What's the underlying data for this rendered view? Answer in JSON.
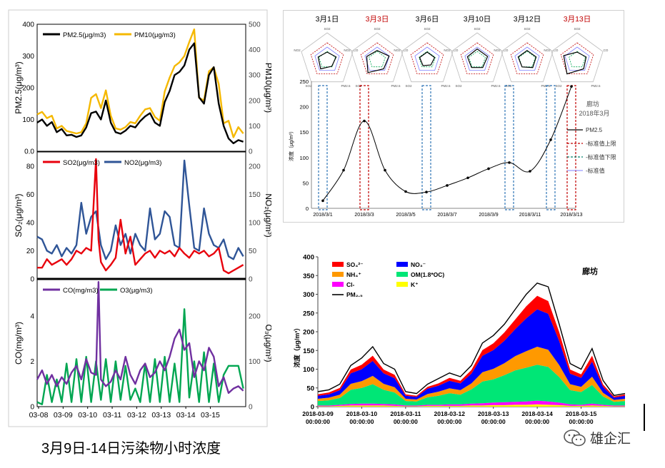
{
  "caption": "3月9日-14日污染物小时浓度",
  "watermark": "雄企汇",
  "chart_data": [
    {
      "id": "left-top",
      "type": "line",
      "legend": [
        "PM2.5(μg/m3)",
        "PM10(μg/m3)"
      ],
      "ylabel_left": "PM2.5(μg/m³)",
      "ylabel_right": "PM10(μg/m³)",
      "yticks_left": [
        "400",
        "300",
        "200",
        "100",
        "0.0"
      ],
      "yticks_right": [
        "500",
        "400",
        "300",
        "200",
        "100",
        "0"
      ],
      "ylim_left": [
        0,
        400
      ],
      "ylim_right": [
        0,
        500
      ],
      "xlim": [
        0,
        8.5
      ],
      "colors": {
        "PM2.5": "#000000",
        "PM10": "#f5b800"
      },
      "series": [
        {
          "name": "PM2.5(μg/m3)",
          "axis": "left",
          "x": [
            0,
            0.2,
            0.4,
            0.6,
            0.8,
            1.0,
            1.2,
            1.4,
            1.6,
            1.8,
            2.0,
            2.2,
            2.4,
            2.6,
            2.8,
            3.0,
            3.2,
            3.4,
            3.6,
            3.8,
            4.0,
            4.2,
            4.4,
            4.6,
            4.8,
            5.0,
            5.2,
            5.4,
            5.6,
            5.8,
            6.0,
            6.2,
            6.4,
            6.6,
            6.8,
            7.0,
            7.2,
            7.4,
            7.6,
            7.8,
            8.0,
            8.2,
            8.4
          ],
          "y": [
            90,
            100,
            80,
            92,
            60,
            70,
            50,
            52,
            45,
            50,
            75,
            120,
            125,
            100,
            160,
            90,
            60,
            55,
            65,
            80,
            75,
            95,
            110,
            120,
            90,
            80,
            155,
            190,
            240,
            250,
            270,
            320,
            340,
            170,
            150,
            240,
            265,
            150,
            80,
            40,
            25,
            35,
            30
          ]
        },
        {
          "name": "PM10(μg/m3)",
          "axis": "right",
          "x": [
            0,
            0.2,
            0.4,
            0.6,
            0.8,
            1.0,
            1.2,
            1.4,
            1.6,
            1.8,
            2.0,
            2.2,
            2.4,
            2.6,
            2.8,
            3.0,
            3.2,
            3.4,
            3.6,
            3.8,
            4.0,
            4.2,
            4.4,
            4.6,
            4.8,
            5.0,
            5.2,
            5.4,
            5.6,
            5.8,
            6.0,
            6.2,
            6.4,
            6.6,
            6.8,
            7.0,
            7.2,
            7.4,
            7.6,
            7.8,
            8.0,
            8.2,
            8.4
          ],
          "y": [
            145,
            155,
            130,
            140,
            90,
            100,
            80,
            75,
            70,
            75,
            110,
            210,
            225,
            170,
            240,
            140,
            90,
            85,
            95,
            115,
            110,
            140,
            165,
            170,
            135,
            120,
            235,
            290,
            335,
            350,
            375,
            430,
            480,
            210,
            200,
            315,
            330,
            265,
            110,
            120,
            55,
            95,
            70
          ]
        }
      ]
    },
    {
      "id": "left-mid",
      "type": "line",
      "legend": [
        "SO2(μg/m3)",
        "NO2(μg/m3)"
      ],
      "ylabel_left": "SO₂(μg/m³)",
      "ylabel_right": "NO₂(μg/m³)",
      "yticks_left": [
        "80",
        "60",
        "40",
        "20",
        "0"
      ],
      "yticks_right": [
        "200",
        "150",
        "100",
        "50",
        "0"
      ],
      "ylim_left": [
        0,
        90
      ],
      "ylim_right": [
        0,
        225
      ],
      "colors": {
        "SO2": "#e8000c",
        "NO2": "#2f5597"
      },
      "series": [
        {
          "name": "SO2(μg/m3)",
          "axis": "left",
          "x": [
            0,
            0.2,
            0.4,
            0.6,
            0.8,
            1.0,
            1.2,
            1.4,
            1.6,
            1.8,
            2.0,
            2.2,
            2.4,
            2.5,
            2.6,
            2.8,
            3.0,
            3.2,
            3.4,
            3.6,
            3.8,
            4.0,
            4.2,
            4.4,
            4.6,
            4.8,
            5.0,
            5.2,
            5.4,
            5.6,
            5.8,
            6.0,
            6.2,
            6.4,
            6.6,
            6.8,
            7.0,
            7.2,
            7.4,
            7.6,
            7.8,
            8.0,
            8.2,
            8.4
          ],
          "y": [
            8,
            8,
            14,
            10,
            12,
            14,
            10,
            14,
            20,
            18,
            22,
            20,
            85,
            28,
            12,
            6,
            10,
            15,
            42,
            18,
            30,
            10,
            14,
            18,
            20,
            15,
            20,
            18,
            20,
            16,
            22,
            18,
            15,
            20,
            18,
            20,
            16,
            18,
            22,
            6,
            4,
            6,
            8,
            10
          ]
        },
        {
          "name": "NO2(μg/m3)",
          "axis": "right",
          "x": [
            0,
            0.2,
            0.4,
            0.6,
            0.8,
            1.0,
            1.2,
            1.4,
            1.6,
            1.8,
            2.0,
            2.2,
            2.4,
            2.6,
            2.8,
            3.0,
            3.2,
            3.4,
            3.6,
            3.8,
            4.0,
            4.2,
            4.4,
            4.6,
            4.8,
            5.0,
            5.2,
            5.4,
            5.6,
            5.8,
            6.0,
            6.2,
            6.4,
            6.6,
            6.8,
            7.0,
            7.2,
            7.4,
            7.6,
            7.8,
            8.0,
            8.2,
            8.4
          ],
          "y": [
            75,
            70,
            50,
            45,
            60,
            40,
            55,
            45,
            60,
            135,
            80,
            110,
            120,
            60,
            35,
            50,
            95,
            60,
            80,
            45,
            80,
            60,
            50,
            125,
            70,
            80,
            120,
            110,
            60,
            55,
            210,
            130,
            55,
            50,
            125,
            80,
            60,
            55,
            70,
            40,
            35,
            55,
            40
          ]
        }
      ]
    },
    {
      "id": "left-bottom",
      "type": "line",
      "legend": [
        "CO(mg/m3)",
        "O3(μg/m3)"
      ],
      "ylabel_left": "CO(mg/m³)",
      "ylabel_right": "O₃(μg/m³)",
      "xlabels": [
        "03-08",
        "03-09",
        "03-10",
        "03-11",
        "03-12",
        "03-13",
        "03-14",
        "03-15"
      ],
      "yticks_left": [
        "4",
        "2",
        "0"
      ],
      "yticks_right": [
        "200",
        "100",
        "0"
      ],
      "ylim_left": [
        0,
        5.6
      ],
      "ylim_right": [
        0,
        280
      ],
      "colors": {
        "CO": "#7030a0",
        "O3": "#00a651"
      },
      "series": [
        {
          "name": "CO(mg/m3)",
          "axis": "left",
          "x": [
            0,
            0.2,
            0.4,
            0.6,
            0.8,
            1.0,
            1.2,
            1.4,
            1.6,
            1.8,
            2.0,
            2.2,
            2.4,
            2.5,
            2.6,
            2.8,
            3.0,
            3.2,
            3.4,
            3.6,
            3.8,
            4.0,
            4.2,
            4.4,
            4.6,
            4.8,
            5.0,
            5.2,
            5.4,
            5.6,
            5.8,
            6.0,
            6.2,
            6.4,
            6.6,
            6.8,
            7.0,
            7.2,
            7.4,
            7.6,
            7.8,
            8.0,
            8.2,
            8.4
          ],
          "y": [
            1.2,
            1.6,
            1.0,
            1.4,
            0.9,
            1.3,
            1.0,
            1.5,
            1.8,
            1.2,
            2.1,
            1.5,
            1.4,
            5.5,
            1.2,
            0.9,
            1.1,
            1.6,
            1.2,
            2.2,
            1.4,
            1.0,
            1.6,
            1.9,
            1.3,
            1.5,
            2.0,
            1.6,
            2.2,
            3.0,
            3.4,
            2.5,
            2.8,
            1.3,
            2.0,
            1.6,
            2.6,
            2.2,
            0.9,
            1.3,
            0.6,
            0.8,
            0.9,
            0.7
          ]
        },
        {
          "name": "O3(μg/m3)",
          "axis": "right",
          "x": [
            0,
            0.2,
            0.4,
            0.6,
            0.8,
            1.0,
            1.2,
            1.4,
            1.6,
            1.8,
            2.0,
            2.2,
            2.4,
            2.6,
            2.8,
            3.0,
            3.2,
            3.4,
            3.6,
            3.8,
            4.0,
            4.2,
            4.4,
            4.6,
            4.8,
            5.0,
            5.2,
            5.4,
            5.6,
            5.8,
            6.0,
            6.2,
            6.4,
            6.6,
            6.8,
            7.0,
            7.2,
            7.4,
            7.6,
            7.8,
            8.0,
            8.2,
            8.4
          ],
          "y": [
            10,
            5,
            70,
            10,
            60,
            10,
            95,
            10,
            105,
            10,
            110,
            10,
            100,
            15,
            105,
            10,
            100,
            15,
            90,
            15,
            40,
            10,
            95,
            10,
            105,
            10,
            110,
            10,
            95,
            10,
            215,
            20,
            100,
            10,
            120,
            10,
            95,
            10,
            70,
            90,
            90,
            90,
            40
          ]
        }
      ]
    },
    {
      "id": "right-top",
      "type": "line",
      "site_label": "廊坊",
      "period_label": "2018年3月",
      "ylabel": "浓度（μg/m³）",
      "legend": [
        "PM2.5",
        "-标准值上限",
        "-标准值下限",
        "-标准值"
      ],
      "radar_titles": [
        "3月1日",
        "3月3日",
        "3月6日",
        "3月10日",
        "3月12日",
        "3月13日"
      ],
      "radar_axes": [
        "SO2",
        "NO2",
        "CO",
        "PM2.5",
        "PM10"
      ],
      "radar_axis_labels": [
        "SO2",
        "CO",
        "PM2.5",
        "SO2",
        "NO2"
      ],
      "x": [
        "2018/3/1",
        "2018/3/2",
        "2018/3/3",
        "2018/3/4",
        "2018/3/5",
        "2018/3/6",
        "2018/3/7",
        "2018/3/8",
        "2018/3/9",
        "2018/3/10",
        "2018/3/11",
        "2018/3/12",
        "2018/3/13"
      ],
      "xlabels": [
        "2018/3/1",
        "2018/3/3",
        "2018/3/5",
        "2018/3/7",
        "2018/3/9",
        "2018/3/11",
        "2018/3/13"
      ],
      "yticks": [
        "250",
        "200",
        "150",
        "100",
        "50",
        "0"
      ],
      "ylim": [
        0,
        250
      ],
      "values": [
        15,
        75,
        172,
        75,
        33,
        32,
        45,
        60,
        78,
        90,
        73,
        135,
        240
      ],
      "highlight_boxes": [
        {
          "x": "2018/3/1",
          "color": "#2e75b6",
          "style": "dashed"
        },
        {
          "x": "2018/3/3",
          "color": "#c00000",
          "style": "dashed"
        },
        {
          "x": "2018/3/6",
          "color": "#2e75b6",
          "style": "dashed"
        },
        {
          "x": "2018/3/10",
          "color": "#2e75b6",
          "style": "dashed"
        },
        {
          "x": "2018/3/12",
          "color": "#2e75b6",
          "style": "dashed"
        },
        {
          "x": "2018/3/13",
          "color": "#c00000",
          "style": "dashed"
        }
      ]
    },
    {
      "id": "right-bottom",
      "type": "area",
      "site_label": "廊坊",
      "ylabel": "浓度（μg/m³）",
      "legend": [
        "SO₄²⁻",
        "NO₃⁻",
        "NH₄⁺",
        "OM(1.8*OC)",
        "Cl-",
        "K⁺",
        "PM₂.₅"
      ],
      "colors": {
        "SO4": "#ff0000",
        "NO3": "#0000ff",
        "NH4": "#ff9900",
        "OM": "#00e676",
        "Cl": "#ff00ff",
        "K": "#ffff00",
        "PM25": "#000000"
      },
      "yticks": [
        "400",
        "350",
        "300",
        "250",
        "200",
        "150",
        "100",
        "50",
        "0"
      ],
      "ylim": [
        0,
        400
      ],
      "xlabels": [
        {
          "date": "2018-03-09",
          "time": "00:00:00"
        },
        {
          "date": "2018-03-10",
          "time": "00:00:00"
        },
        {
          "date": "2018-03-11",
          "time": "00:00:00"
        },
        {
          "date": "2018-03-12",
          "time": "00:00:00"
        },
        {
          "date": "2018-03-13",
          "time": "00:00:00"
        },
        {
          "date": "2018-03-14",
          "time": "00:00:00"
        },
        {
          "date": "2018-03-15",
          "time": "00:00:00"
        }
      ],
      "x": [
        0,
        0.25,
        0.5,
        0.75,
        1.0,
        1.25,
        1.5,
        1.75,
        2.0,
        2.25,
        2.5,
        2.75,
        3.0,
        3.25,
        3.5,
        3.75,
        4.0,
        4.25,
        4.5,
        4.75,
        5.0,
        5.25,
        5.5,
        5.75,
        6.0,
        6.25,
        6.5,
        6.75,
        7.0
      ],
      "pm25": [
        40,
        45,
        60,
        110,
        130,
        160,
        115,
        100,
        40,
        35,
        60,
        75,
        90,
        80,
        110,
        170,
        190,
        220,
        260,
        300,
        330,
        320,
        220,
        115,
        100,
        155,
        70,
        30,
        35
      ],
      "stack": {
        "Cl": [
          2,
          2,
          3,
          4,
          5,
          5,
          4,
          4,
          2,
          2,
          3,
          3,
          4,
          4,
          5,
          6,
          7,
          8,
          8,
          9,
          10,
          9,
          7,
          4,
          3,
          5,
          3,
          2,
          2
        ],
        "K": [
          1,
          1,
          2,
          3,
          3,
          3,
          3,
          2,
          1,
          1,
          2,
          2,
          2,
          2,
          3,
          3,
          4,
          4,
          5,
          5,
          6,
          5,
          4,
          2,
          2,
          3,
          2,
          1,
          1
        ],
        "OM": [
          12,
          14,
          18,
          38,
          42,
          52,
          38,
          32,
          12,
          11,
          20,
          24,
          30,
          26,
          38,
          58,
          62,
          72,
          84,
          90,
          96,
          92,
          68,
          38,
          34,
          50,
          22,
          10,
          12
        ],
        "NH4": [
          6,
          7,
          9,
          16,
          18,
          22,
          16,
          14,
          6,
          5,
          9,
          11,
          13,
          12,
          16,
          25,
          28,
          32,
          38,
          44,
          48,
          46,
          32,
          16,
          14,
          22,
          10,
          5,
          6
        ],
        "NO3": [
          8,
          9,
          12,
          28,
          32,
          40,
          28,
          24,
          8,
          7,
          14,
          16,
          20,
          18,
          26,
          44,
          50,
          60,
          72,
          88,
          100,
          96,
          64,
          28,
          24,
          40,
          16,
          6,
          8
        ],
        "SO4": [
          4,
          5,
          6,
          10,
          12,
          14,
          10,
          9,
          4,
          3,
          5,
          6,
          8,
          7,
          10,
          15,
          18,
          22,
          26,
          32,
          36,
          34,
          24,
          11,
          9,
          16,
          6,
          3,
          4
        ]
      }
    }
  ]
}
